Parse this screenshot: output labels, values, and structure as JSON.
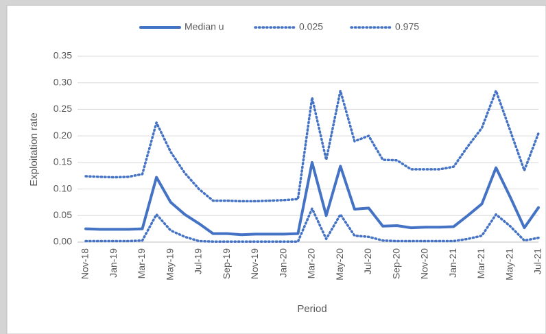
{
  "chart_data": {
    "type": "line",
    "y_label": "Exploitation rate",
    "x_label": "Period",
    "categories": [
      "Nov-18",
      null,
      "Jan-19",
      null,
      "Mar-19",
      null,
      "May-19",
      null,
      "Jul-19",
      null,
      "Sep-19",
      null,
      "Nov-19",
      null,
      "Jan-20",
      null,
      "Mar-20",
      null,
      "May-20",
      null,
      "Jul-20",
      null,
      "Sep-20",
      null,
      "Nov-20",
      null,
      "Jan-21",
      null,
      "Mar-21",
      null,
      "May-21",
      null,
      "Jul-21"
    ],
    "series": [
      {
        "name": "Median u",
        "color": "#4472c4",
        "dash": "solid",
        "values": [
          0.025,
          0.024,
          0.024,
          0.024,
          0.025,
          0.122,
          0.075,
          0.052,
          0.035,
          0.016,
          0.016,
          0.014,
          0.015,
          0.015,
          0.015,
          0.016,
          0.15,
          0.05,
          0.143,
          0.062,
          0.064,
          0.03,
          0.031,
          0.027,
          0.028,
          0.028,
          0.029,
          0.05,
          0.072,
          0.14,
          0.085,
          0.027,
          0.065
        ]
      },
      {
        "name": "0.025",
        "color": "#4472c4",
        "dash": "dotted",
        "values": [
          0.002,
          0.002,
          0.002,
          0.002,
          0.003,
          0.052,
          0.022,
          0.01,
          0.002,
          0.001,
          0.001,
          0.001,
          0.001,
          0.001,
          0.001,
          0.001,
          0.063,
          0.006,
          0.052,
          0.012,
          0.01,
          0.003,
          0.002,
          0.002,
          0.002,
          0.002,
          0.002,
          0.006,
          0.012,
          0.052,
          0.03,
          0.003,
          0.008
        ]
      },
      {
        "name": "0.975",
        "color": "#4472c4",
        "dash": "dotted",
        "values": [
          0.124,
          0.123,
          0.122,
          0.123,
          0.128,
          0.225,
          0.17,
          0.13,
          0.1,
          0.078,
          0.078,
          0.077,
          0.077,
          0.078,
          0.079,
          0.081,
          0.272,
          0.155,
          0.285,
          0.19,
          0.2,
          0.155,
          0.154,
          0.137,
          0.137,
          0.137,
          0.142,
          0.18,
          0.215,
          0.285,
          0.21,
          0.135,
          0.205
        ]
      }
    ],
    "ylim": [
      0,
      0.35
    ],
    "yticks": [
      {
        "value": 0,
        "label": "0.00"
      },
      {
        "value": 0.05,
        "label": "0.05"
      },
      {
        "value": 0.1,
        "label": "0.10"
      },
      {
        "value": 0.15,
        "label": "0.15"
      },
      {
        "value": 0.2,
        "label": "0.20"
      },
      {
        "value": 0.25,
        "label": "0.25"
      },
      {
        "value": 0.3,
        "label": "0.30"
      },
      {
        "value": 0.35,
        "label": "0.35"
      }
    ],
    "grid": true,
    "legend": "top"
  }
}
